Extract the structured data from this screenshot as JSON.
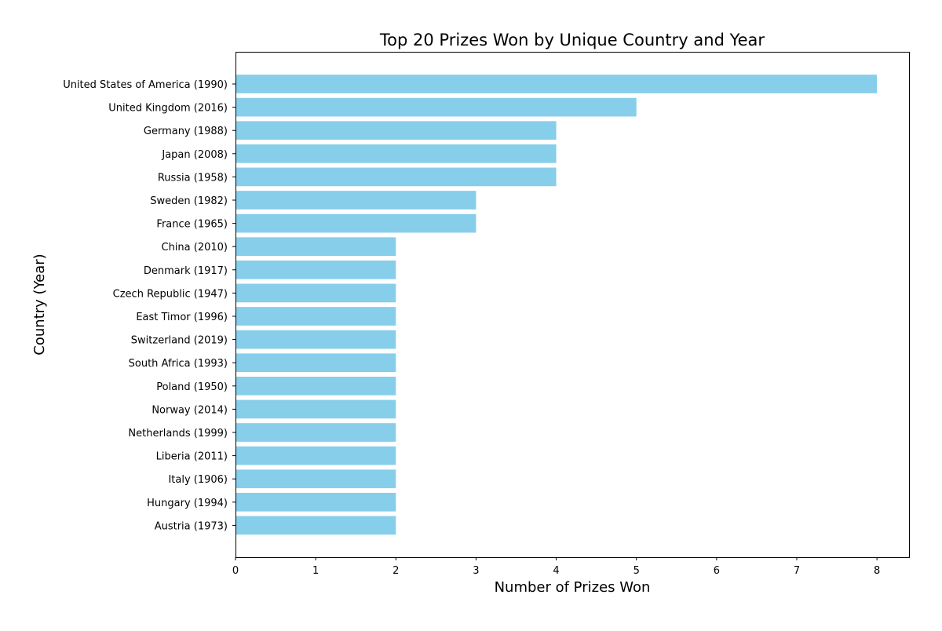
{
  "chart_data": {
    "type": "bar",
    "orientation": "horizontal",
    "title": "Top 20 Prizes Won by Unique Country and Year",
    "xlabel": "Number of Prizes Won",
    "ylabel": "Country (Year)",
    "xlim": [
      0,
      8.4
    ],
    "xticks": [
      0,
      1,
      2,
      3,
      4,
      5,
      6,
      7,
      8
    ],
    "grid": false,
    "bar_color": "#87ceeb",
    "categories": [
      "United States of America (1990)",
      "United Kingdom (2016)",
      "Germany (1988)",
      "Japan (2008)",
      "Russia (1958)",
      "Sweden (1982)",
      "France (1965)",
      "China (2010)",
      "Denmark (1917)",
      "Czech Republic (1947)",
      "East Timor (1996)",
      "Switzerland (2019)",
      "South Africa (1993)",
      "Poland (1950)",
      "Norway (2014)",
      "Netherlands (1999)",
      "Liberia (2011)",
      "Italy (1906)",
      "Hungary (1994)",
      "Austria (1973)"
    ],
    "values": [
      8,
      5,
      4,
      4,
      4,
      3,
      3,
      2,
      2,
      2,
      2,
      2,
      2,
      2,
      2,
      2,
      2,
      2,
      2,
      2
    ]
  }
}
